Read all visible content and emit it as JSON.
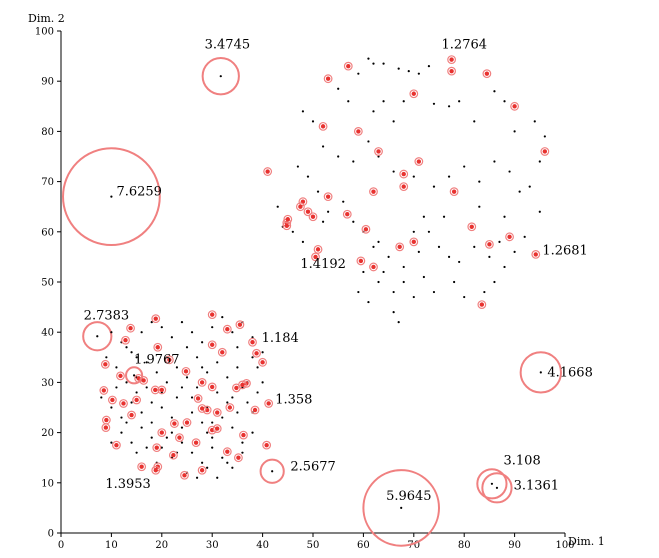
{
  "chart_data": {
    "type": "scatter",
    "xlabel": "Dim. 1",
    "ylabel": "Dim. 2",
    "xlim": [
      0,
      100
    ],
    "ylim": [
      0,
      100
    ],
    "x_ticks": [
      "0",
      "10",
      "20",
      "30",
      "40",
      "50",
      "60",
      "70",
      "80",
      "90",
      "100"
    ],
    "y_ticks": [
      "0",
      "10",
      "20",
      "30",
      "40",
      "50",
      "60",
      "70",
      "80",
      "90",
      "100"
    ],
    "grid": false,
    "annotations": [
      {
        "text": "3.4745",
        "x": 31.7,
        "y": 91.0,
        "r": 3.6,
        "tx": 28.5,
        "ty": 96.5
      },
      {
        "text": "7.6259",
        "x": 10.0,
        "y": 67.0,
        "r": 9.6,
        "tx": 11.0,
        "ty": 67.2
      },
      {
        "text": "1.2764",
        "x": 77.5,
        "y": 94.3,
        "r": 0,
        "tx": 75.5,
        "ty": 96.5
      },
      {
        "text": "1.2681",
        "x": 94.2,
        "y": 55.5,
        "r": 0,
        "tx": 95.5,
        "ty": 55.5
      },
      {
        "text": "1.4192",
        "x": 50.5,
        "y": 55.0,
        "r": 0,
        "tx": 47.5,
        "ty": 52.8
      },
      {
        "text": "2.7383",
        "x": 7.2,
        "y": 39.2,
        "r": 2.8,
        "tx": 4.5,
        "ty": 42.5
      },
      {
        "text": "1.9767",
        "x": 14.5,
        "y": 31.4,
        "r": 1.6,
        "tx": 14.5,
        "ty": 33.8
      },
      {
        "text": "1.184",
        "x": 38.0,
        "y": 38.0,
        "r": 0,
        "tx": 39.8,
        "ty": 38.0
      },
      {
        "text": "1.358",
        "x": 41.2,
        "y": 25.8,
        "r": 0,
        "tx": 42.5,
        "ty": 25.8
      },
      {
        "text": "2.5677",
        "x": 41.9,
        "y": 12.3,
        "r": 2.3,
        "tx": 45.5,
        "ty": 12.5
      },
      {
        "text": "1.3953",
        "x": 16.0,
        "y": 13.2,
        "r": 0,
        "tx": 8.8,
        "ty": 9.0
      },
      {
        "text": "5.9645",
        "x": 67.5,
        "y": 5.0,
        "r": 7.5,
        "tx": 64.5,
        "ty": 6.6
      },
      {
        "text": "4.1668",
        "x": 95.2,
        "y": 32.0,
        "r": 4.0,
        "tx": 96.5,
        "ty": 31.2
      },
      {
        "text": "3.108",
        "x": 85.5,
        "y": 9.8,
        "r": 2.9,
        "tx": 87.8,
        "ty": 13.6
      },
      {
        "text": "3.1361",
        "x": 86.5,
        "y": 9.0,
        "r": 2.9,
        "tx": 89.8,
        "ty": 8.7
      }
    ],
    "series": [
      {
        "color": "#000000",
        "points": [
          [
            31.7,
            91.0
          ],
          [
            10.0,
            67.0
          ],
          [
            7.2,
            39.2
          ],
          [
            14.5,
            31.4
          ],
          [
            41.9,
            12.3
          ],
          [
            67.5,
            5.0
          ],
          [
            95.2,
            32.0
          ],
          [
            85.5,
            9.8
          ],
          [
            86.5,
            9.0
          ],
          [
            61,
            94.5
          ],
          [
            62,
            93.5
          ],
          [
            64,
            93.5
          ],
          [
            67,
            92.5
          ],
          [
            69,
            92
          ],
          [
            73,
            93
          ],
          [
            71,
            91.5
          ],
          [
            59,
            91.5
          ],
          [
            55,
            88.5
          ],
          [
            57,
            86
          ],
          [
            64,
            86
          ],
          [
            68,
            86
          ],
          [
            74,
            85.5
          ],
          [
            77,
            85
          ],
          [
            79,
            86
          ],
          [
            82,
            82
          ],
          [
            86,
            88
          ],
          [
            88,
            86
          ],
          [
            90,
            80
          ],
          [
            94,
            82
          ],
          [
            96,
            79
          ],
          [
            66,
            82
          ],
          [
            62,
            84
          ],
          [
            48,
            84
          ],
          [
            50,
            82
          ],
          [
            52,
            77
          ],
          [
            55,
            75
          ],
          [
            58,
            74
          ],
          [
            61,
            78
          ],
          [
            63,
            75
          ],
          [
            66,
            72
          ],
          [
            70,
            71
          ],
          [
            74,
            69
          ],
          [
            77,
            71
          ],
          [
            80,
            73
          ],
          [
            83,
            70
          ],
          [
            86,
            74
          ],
          [
            89,
            72
          ],
          [
            91,
            68
          ],
          [
            95,
            64
          ],
          [
            47,
            73
          ],
          [
            49,
            71
          ],
          [
            51,
            68
          ],
          [
            53,
            64
          ],
          [
            56,
            66
          ],
          [
            58,
            62
          ],
          [
            60,
            60
          ],
          [
            63,
            58
          ],
          [
            65,
            55
          ],
          [
            68,
            53
          ],
          [
            71,
            56
          ],
          [
            73,
            60
          ],
          [
            75,
            57
          ],
          [
            77,
            55
          ],
          [
            79,
            54
          ],
          [
            82,
            57
          ],
          [
            85,
            55
          ],
          [
            87,
            58
          ],
          [
            90,
            56
          ],
          [
            92,
            59
          ],
          [
            66,
            48
          ],
          [
            68,
            50
          ],
          [
            70,
            47
          ],
          [
            72,
            51
          ],
          [
            74,
            48
          ],
          [
            78,
            50
          ],
          [
            80,
            47
          ],
          [
            84,
            48
          ],
          [
            86,
            50
          ],
          [
            88,
            53
          ],
          [
            61,
            46
          ],
          [
            63,
            50
          ],
          [
            64,
            52
          ],
          [
            66,
            44
          ],
          [
            60,
            52
          ],
          [
            59,
            48
          ],
          [
            62,
            57
          ],
          [
            70,
            60
          ],
          [
            76,
            63
          ],
          [
            48,
            58
          ],
          [
            46,
            60
          ],
          [
            44,
            61
          ],
          [
            43,
            65
          ],
          [
            72,
            63
          ],
          [
            83,
            65
          ],
          [
            88,
            63
          ],
          [
            93,
            69
          ],
          [
            95,
            74
          ],
          [
            52,
            62
          ],
          [
            67,
            42
          ],
          [
            10,
            40
          ],
          [
            12,
            38
          ],
          [
            14,
            36
          ],
          [
            16,
            40
          ],
          [
            18,
            42
          ],
          [
            20,
            41
          ],
          [
            22,
            39
          ],
          [
            24,
            42
          ],
          [
            26,
            40
          ],
          [
            28,
            38
          ],
          [
            30,
            41
          ],
          [
            32,
            43
          ],
          [
            34,
            40
          ],
          [
            36,
            42
          ],
          [
            38,
            39
          ],
          [
            40,
            36
          ],
          [
            9,
            35
          ],
          [
            11,
            33
          ],
          [
            13,
            30
          ],
          [
            15,
            28
          ],
          [
            17,
            34
          ],
          [
            19,
            32
          ],
          [
            21,
            30
          ],
          [
            23,
            33
          ],
          [
            25,
            31
          ],
          [
            27,
            29
          ],
          [
            29,
            32
          ],
          [
            31,
            34
          ],
          [
            33,
            31
          ],
          [
            35,
            33
          ],
          [
            37,
            30
          ],
          [
            39,
            28
          ],
          [
            8,
            27
          ],
          [
            10,
            25
          ],
          [
            12,
            23
          ],
          [
            14,
            26
          ],
          [
            16,
            24
          ],
          [
            18,
            22
          ],
          [
            20,
            25
          ],
          [
            22,
            23
          ],
          [
            24,
            21
          ],
          [
            26,
            24
          ],
          [
            28,
            22
          ],
          [
            30,
            19
          ],
          [
            32,
            23
          ],
          [
            34,
            21
          ],
          [
            36,
            18
          ],
          [
            38,
            24
          ],
          [
            10,
            18
          ],
          [
            12,
            20
          ],
          [
            14,
            18
          ],
          [
            16,
            21
          ],
          [
            18,
            19
          ],
          [
            20,
            17
          ],
          [
            22,
            15
          ],
          [
            24,
            18
          ],
          [
            26,
            16
          ],
          [
            28,
            14
          ],
          [
            30,
            17
          ],
          [
            32,
            15
          ],
          [
            34,
            13
          ],
          [
            36,
            16
          ],
          [
            38,
            20
          ],
          [
            25,
            12
          ],
          [
            27,
            11
          ],
          [
            29,
            13
          ],
          [
            31,
            11
          ],
          [
            33,
            14
          ],
          [
            21,
            19
          ],
          [
            23,
            16
          ],
          [
            19,
            14
          ],
          [
            17,
            17
          ],
          [
            15,
            16
          ],
          [
            13,
            22
          ],
          [
            11,
            29
          ],
          [
            13,
            37
          ],
          [
            15,
            35
          ],
          [
            37,
            26
          ],
          [
            39,
            33
          ],
          [
            35,
            37
          ],
          [
            33,
            26
          ],
          [
            31,
            28
          ],
          [
            29,
            25
          ],
          [
            27,
            35
          ],
          [
            25,
            37
          ],
          [
            23,
            27
          ],
          [
            21,
            35
          ],
          [
            19,
            37
          ],
          [
            17,
            29
          ],
          [
            15,
            31
          ],
          [
            20,
            28
          ],
          [
            24,
            29
          ],
          [
            28,
            33
          ],
          [
            32,
            36
          ],
          [
            36,
            29
          ],
          [
            30,
            22
          ],
          [
            34,
            27
          ],
          [
            26,
            27
          ],
          [
            22,
            20
          ],
          [
            18,
            26
          ],
          [
            29,
            20
          ],
          [
            35,
            24
          ],
          [
            40,
            30
          ],
          [
            38,
            35
          ]
        ]
      },
      {
        "color": "#e8322f",
        "points": [
          [
            77.5,
            94.3
          ],
          [
            94.2,
            55.5
          ],
          [
            50.5,
            55.0
          ],
          [
            38.0,
            38.0
          ],
          [
            41.2,
            25.8
          ],
          [
            16.0,
            13.2
          ],
          [
            53,
            90.5
          ],
          [
            57,
            93
          ],
          [
            77.5,
            92
          ],
          [
            84.5,
            91.5
          ],
          [
            70,
            87.5
          ],
          [
            90,
            85
          ],
          [
            52,
            81
          ],
          [
            59,
            80
          ],
          [
            63,
            76
          ],
          [
            71,
            74
          ],
          [
            48,
            66
          ],
          [
            49,
            64
          ],
          [
            53,
            67
          ],
          [
            62,
            68
          ],
          [
            68,
            69
          ],
          [
            78,
            68
          ],
          [
            50,
            63
          ],
          [
            44.8,
            61.8
          ],
          [
            44.8,
            61.2
          ],
          [
            45,
            62.5
          ],
          [
            56.8,
            63.5
          ],
          [
            60.5,
            60.5
          ],
          [
            70,
            58
          ],
          [
            81.5,
            61
          ],
          [
            89,
            59
          ],
          [
            85,
            57.5
          ],
          [
            51,
            56.5
          ],
          [
            59.5,
            54.2
          ],
          [
            67.2,
            57
          ],
          [
            96,
            76
          ],
          [
            68,
            71.5
          ],
          [
            41,
            72
          ],
          [
            47.5,
            65
          ],
          [
            83.5,
            45.5
          ],
          [
            62,
            53
          ],
          [
            13.8,
            40.8
          ],
          [
            18.8,
            42.7
          ],
          [
            30,
            43.5
          ],
          [
            33,
            40.6
          ],
          [
            35.5,
            41.5
          ],
          [
            30,
            37.5
          ],
          [
            32,
            36
          ],
          [
            12.8,
            38.4
          ],
          [
            19.2,
            37
          ],
          [
            8.8,
            33.6
          ],
          [
            11.8,
            31.3
          ],
          [
            15.4,
            30.8
          ],
          [
            16.4,
            30.4
          ],
          [
            21.5,
            34.5
          ],
          [
            24.8,
            32.2
          ],
          [
            28,
            30
          ],
          [
            30,
            29.1
          ],
          [
            36.8,
            29.8
          ],
          [
            38.8,
            35.8
          ],
          [
            40,
            34
          ],
          [
            8.5,
            28.4
          ],
          [
            10.2,
            26.5
          ],
          [
            12.4,
            25.8
          ],
          [
            15,
            26.5
          ],
          [
            18.7,
            28.5
          ],
          [
            20,
            28.5
          ],
          [
            27.2,
            26.8
          ],
          [
            29,
            24.5
          ],
          [
            31,
            24
          ],
          [
            34.8,
            28.9
          ],
          [
            36,
            29.5
          ],
          [
            9,
            22.5
          ],
          [
            8.9,
            21
          ],
          [
            14,
            23.5
          ],
          [
            20,
            20
          ],
          [
            22.5,
            21.8
          ],
          [
            25,
            22
          ],
          [
            28,
            24.8
          ],
          [
            30,
            20.5
          ],
          [
            33.5,
            25
          ],
          [
            38.5,
            24.5
          ],
          [
            11,
            17.5
          ],
          [
            19,
            17
          ],
          [
            23.5,
            19
          ],
          [
            26.8,
            18
          ],
          [
            31,
            20.8
          ],
          [
            36.2,
            19.5
          ],
          [
            19.2,
            13.2
          ],
          [
            18.8,
            12.5
          ],
          [
            22.3,
            15.5
          ],
          [
            35.2,
            15
          ],
          [
            33,
            16.2
          ],
          [
            40.8,
            17.5
          ],
          [
            24.5,
            11.5
          ],
          [
            28,
            12.5
          ]
        ]
      }
    ]
  }
}
